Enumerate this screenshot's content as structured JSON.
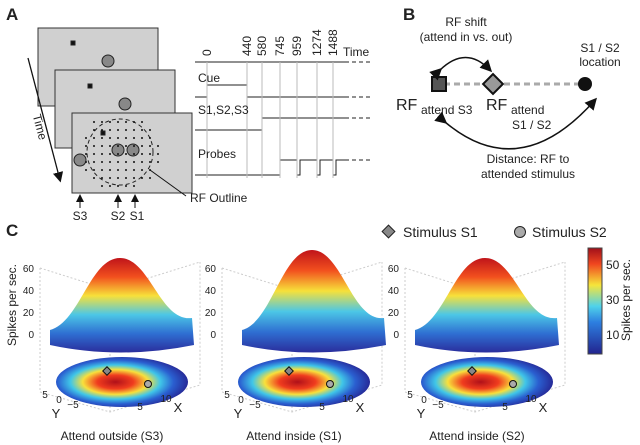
{
  "panel_a": {
    "label": "A",
    "time_arrow": "Time",
    "timeline_header": "Time",
    "timeline_ticks": [
      "0",
      "440",
      "580",
      "745",
      "959",
      "1274",
      "1488"
    ],
    "rows": [
      "Cue",
      "S1,S2,S3",
      "Probes"
    ],
    "rf_outline": "RF Outline",
    "stimuli": [
      "S3",
      "S2",
      "S1"
    ]
  },
  "panel_b": {
    "label": "B",
    "rf_shift": [
      "RF shift",
      "(attend in vs. out)"
    ],
    "location": [
      "S1 / S2",
      "location"
    ],
    "rf_out": {
      "main": "RF",
      "sub": "attend S3"
    },
    "rf_in": {
      "main": "RF",
      "sub": "attend",
      "sub2": "S1 / S2"
    },
    "distance": [
      "Distance: RF to",
      "attended stimulus"
    ]
  },
  "panel_c": {
    "label": "C",
    "legend": [
      "Stimulus S1",
      "Stimulus S2"
    ],
    "z_axis_label": "Spikes per sec.",
    "z_ticks": [
      "0",
      "20",
      "40",
      "60"
    ],
    "y_label": "Y",
    "x_label": "X",
    "y_ticks": [
      "5",
      "0",
      "−5"
    ],
    "x_ticks": [
      "5",
      "10"
    ],
    "colorbar_label": "Spikes per sec.",
    "colorbar_ticks": [
      "10",
      "30",
      "50"
    ],
    "titles": [
      "Attend outside (S3)",
      "Attend inside (S1)",
      "Attend inside (S2)"
    ]
  }
}
